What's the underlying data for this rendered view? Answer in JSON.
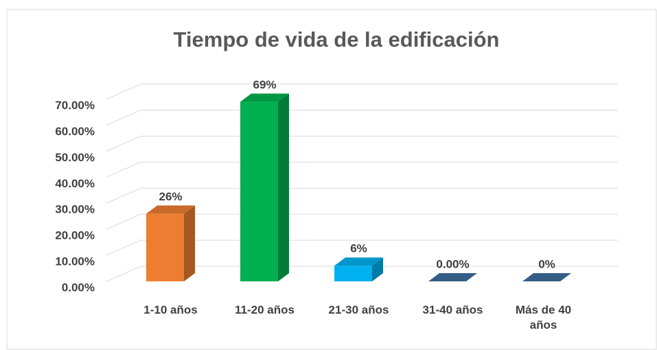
{
  "chart_data": {
    "type": "bar3d",
    "title": "Tiempo de vida de la edificación",
    "categories": [
      "1-10 años",
      "11-20 años",
      "21-30 años",
      "31-40 años",
      "Más de 40 años"
    ],
    "values": [
      26,
      69,
      6,
      0,
      0
    ],
    "value_labels": [
      "26%",
      "69%",
      "6%",
      "0.00%",
      "0%"
    ],
    "colors": [
      "#ed7d31",
      "#00b050",
      "#00b0f0",
      "#3e6f9e",
      "#3e6f9e"
    ],
    "ylim": [
      0,
      77
    ],
    "yticks": [
      {
        "value": 0,
        "label": "0.00%"
      },
      {
        "value": 10,
        "label": "10.00%"
      },
      {
        "value": 20,
        "label": "20.00%"
      },
      {
        "value": 30,
        "label": "30.00%"
      },
      {
        "value": 40,
        "label": "40.00%"
      },
      {
        "value": 50,
        "label": "50.00%"
      },
      {
        "value": 60,
        "label": "60.00%"
      },
      {
        "value": 70,
        "label": "70.00%"
      }
    ],
    "grid": true
  }
}
